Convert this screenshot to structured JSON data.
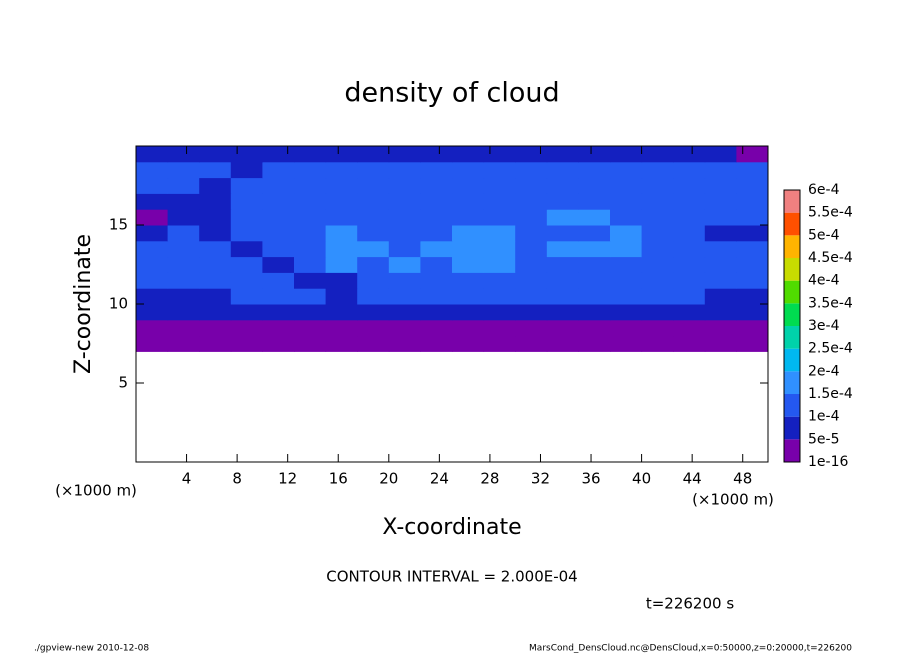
{
  "chart_data": {
    "type": "heatmap",
    "title": "density of cloud",
    "xlabel": "X-coordinate",
    "ylabel": "Z-coordinate",
    "xunit": "(×1000 m)",
    "yunit": "(×1000 m)",
    "annotations": [
      "CONTOUR INTERVAL = 2.000E-04",
      "t=226200 s"
    ],
    "xlim": [
      0,
      50
    ],
    "ylim": [
      0,
      20
    ],
    "xticks": [
      4,
      8,
      12,
      16,
      20,
      24,
      28,
      32,
      36,
      40,
      44,
      48
    ],
    "yticks": [
      5,
      10,
      15
    ],
    "xbins": [
      0,
      2.5,
      5,
      7.5,
      10,
      12.5,
      15,
      17.5,
      20,
      22.5,
      25,
      27.5,
      30,
      32.5,
      35,
      37.5,
      40,
      42.5,
      45,
      47.5,
      50
    ],
    "ybins": [
      7,
      8,
      9,
      10,
      11,
      12,
      13,
      14,
      15,
      16,
      17,
      18,
      19,
      20
    ],
    "values": [
      [
        2e-05,
        2e-05,
        2e-05,
        2e-05,
        2e-05,
        2e-05,
        2e-05,
        2e-05,
        2e-05,
        2e-05,
        2e-05,
        2e-05,
        2e-05,
        2e-05,
        2e-05,
        2e-05,
        2e-05,
        2e-05,
        2e-05,
        2e-05
      ],
      [
        3e-05,
        3e-05,
        3e-05,
        4e-05,
        3e-05,
        3e-05,
        3e-05,
        3e-05,
        3e-05,
        3e-05,
        3e-05,
        3e-05,
        3e-05,
        3e-05,
        3e-05,
        3e-05,
        3e-05,
        3e-05,
        3e-05,
        3e-05
      ],
      [
        7e-05,
        7e-05,
        7e-05,
        7e-05,
        7e-05,
        7e-05,
        7e-05,
        7e-05,
        7e-05,
        7e-05,
        7e-05,
        7e-05,
        7e-05,
        7e-05,
        7e-05,
        7e-05,
        7e-05,
        7e-05,
        7e-05,
        7e-05
      ],
      [
        8e-05,
        9e-05,
        9e-05,
        0.00011,
        0.00011,
        0.00011,
        8e-05,
        0.00011,
        0.00012,
        0.00012,
        0.00012,
        0.00012,
        0.00012,
        0.00011,
        0.00011,
        0.00011,
        0.00011,
        0.00011,
        9e-05,
        9e-05
      ],
      [
        0.00011,
        0.00012,
        0.00012,
        0.00012,
        0.00012,
        8e-05,
        7e-05,
        0.00013,
        0.00013,
        0.00013,
        0.00013,
        0.00013,
        0.00013,
        0.00012,
        0.00012,
        0.00012,
        0.00012,
        0.00012,
        0.00011,
        0.00011
      ],
      [
        0.00012,
        0.00012,
        0.00012,
        0.00012,
        8e-05,
        0.00012,
        0.00016,
        0.00013,
        0.00016,
        0.00013,
        0.00016,
        0.00016,
        0.00013,
        0.00013,
        0.00013,
        0.00012,
        0.00012,
        0.00012,
        0.00012,
        0.00012
      ],
      [
        0.00011,
        0.00011,
        0.00012,
        8e-05,
        0.00012,
        0.00012,
        0.00016,
        0.00016,
        0.00013,
        0.00016,
        0.00016,
        0.00016,
        0.00013,
        0.00016,
        0.00016,
        0.00016,
        0.00013,
        0.00012,
        0.00012,
        0.00011
      ],
      [
        7e-05,
        0.00011,
        8e-05,
        0.00012,
        0.00012,
        0.00012,
        0.00016,
        0.00013,
        0.00013,
        0.00013,
        0.00016,
        0.00016,
        0.00013,
        0.00012,
        0.00013,
        0.00016,
        0.00013,
        0.00012,
        8e-05,
        7e-05
      ],
      [
        4e-05,
        7e-05,
        8e-05,
        0.00012,
        0.00012,
        0.00012,
        0.00012,
        0.00012,
        0.00012,
        0.00012,
        0.00012,
        0.00012,
        0.00012,
        0.00016,
        0.00016,
        0.00013,
        0.00012,
        0.00012,
        0.00012,
        0.00011
      ],
      [
        8e-05,
        8e-05,
        7e-05,
        0.00012,
        0.00013,
        0.00013,
        0.00013,
        0.00013,
        0.00013,
        0.00013,
        0.00012,
        0.00012,
        0.00013,
        0.00013,
        0.00013,
        0.00013,
        0.00013,
        0.00012,
        0.00012,
        0.00012
      ],
      [
        0.00011,
        0.00011,
        8e-05,
        0.00012,
        0.00013,
        0.00013,
        0.00013,
        0.00013,
        0.00013,
        0.00013,
        0.00013,
        0.00013,
        0.00013,
        0.00013,
        0.00013,
        0.00013,
        0.00013,
        0.00012,
        0.00012,
        0.00011
      ],
      [
        0.00011,
        0.00011,
        0.00011,
        8e-05,
        0.00011,
        0.00011,
        0.00011,
        0.00011,
        0.00011,
        0.00011,
        0.00011,
        0.00011,
        0.00011,
        0.00011,
        0.00011,
        0.00011,
        0.00011,
        0.00011,
        0.00011,
        0.00011
      ],
      [
        7e-05,
        7e-05,
        7e-05,
        7e-05,
        7e-05,
        7e-05,
        7e-05,
        7e-05,
        7e-05,
        7e-05,
        7e-05,
        7e-05,
        7e-05,
        7e-05,
        7e-05,
        7e-05,
        7e-05,
        7e-05,
        7e-05,
        3e-05
      ]
    ],
    "levels": [
      {
        "value": 1e-16,
        "label": "1e-16"
      },
      {
        "value": 5e-05,
        "label": "5e-5"
      },
      {
        "value": 0.0001,
        "label": "1e-4"
      },
      {
        "value": 0.00015,
        "label": "1.5e-4"
      },
      {
        "value": 0.0002,
        "label": "2e-4"
      },
      {
        "value": 0.00025,
        "label": "2.5e-4"
      },
      {
        "value": 0.0003,
        "label": "3e-4"
      },
      {
        "value": 0.00035,
        "label": "3.5e-4"
      },
      {
        "value": 0.0004,
        "label": "4e-4"
      },
      {
        "value": 0.00045,
        "label": "4.5e-4"
      },
      {
        "value": 0.0005,
        "label": "5e-4"
      },
      {
        "value": 0.00055,
        "label": "5.5e-4"
      },
      {
        "value": 0.0006,
        "label": "6e-4"
      }
    ],
    "colors": [
      "#7800aa",
      "#1420c0",
      "#2458f0",
      "#3090ff",
      "#00b8f0",
      "#00d2aa",
      "#00dc50",
      "#50dc00",
      "#c8dc00",
      "#ffb400",
      "#ff5000",
      "#f08080"
    ]
  },
  "footer": {
    "left": "./gpview-new  2010-12-08",
    "right": "MarsCond_DensCloud.nc@DensCloud,x=0:50000,z=0:20000,t=226200"
  }
}
